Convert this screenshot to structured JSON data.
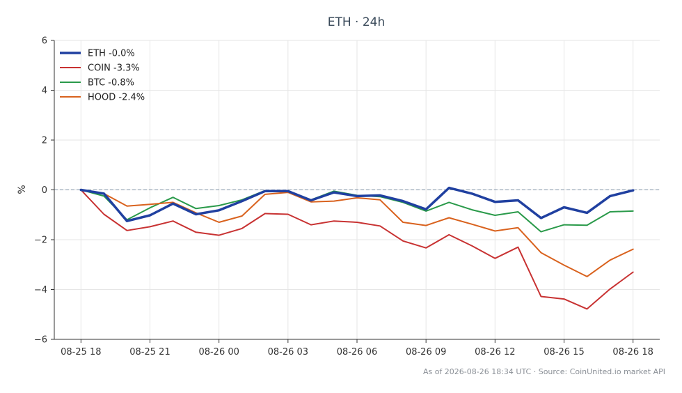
{
  "footer": "As of 2026-08-26 18:34 UTC · Source: CoinUnited.io market API",
  "chart_data": {
    "type": "line",
    "title": "ETH · 24h",
    "xlabel": "",
    "ylabel": "%",
    "ylim": [
      -6,
      6
    ],
    "yticks": [
      -6,
      -4,
      -2,
      0,
      2,
      4,
      6
    ],
    "ytick_labels": [
      "−6",
      "−4",
      "−2",
      "0",
      "2",
      "4",
      "6"
    ],
    "xticks": [
      0,
      3,
      6,
      9,
      12,
      15,
      18,
      21,
      24
    ],
    "xtick_labels": [
      "08-25 18",
      "08-25 21",
      "08-26 00",
      "08-26 03",
      "08-26 06",
      "08-26 09",
      "08-26 12",
      "08-26 15",
      "08-26 18"
    ],
    "xlim": [
      -1.16,
      25.16
    ],
    "x": [
      0,
      1,
      2,
      3,
      4,
      5,
      6,
      7,
      8,
      9,
      10,
      11,
      12,
      13,
      14,
      15,
      16,
      17,
      18,
      19,
      20,
      21,
      22,
      23,
      24
    ],
    "grid": true,
    "legend_position": "top-left",
    "reference_line": {
      "y": 0,
      "style": "dashed",
      "color": "#7a8ea3"
    },
    "series": [
      {
        "name": "ETH -0.0%",
        "color": "#2040a0",
        "width": 3.5,
        "values": [
          0.0,
          -0.15,
          -1.25,
          -1.02,
          -0.55,
          -0.98,
          -0.82,
          -0.45,
          -0.05,
          -0.05,
          -0.42,
          -0.1,
          -0.25,
          -0.22,
          -0.45,
          -0.78,
          0.08,
          -0.15,
          -0.48,
          -0.42,
          -1.13,
          -0.7,
          -0.92,
          -0.25,
          -0.02
        ]
      },
      {
        "name": "COIN -3.3%",
        "color": "#c83232",
        "width": 2,
        "values": [
          0.0,
          -0.98,
          -1.63,
          -1.48,
          -1.25,
          -1.7,
          -1.82,
          -1.55,
          -0.95,
          -0.98,
          -1.4,
          -1.25,
          -1.3,
          -1.45,
          -2.05,
          -2.33,
          -1.8,
          -2.25,
          -2.75,
          -2.3,
          -4.28,
          -4.38,
          -4.78,
          -3.98,
          -3.3
        ]
      },
      {
        "name": "BTC -0.8%",
        "color": "#2a9a4a",
        "width": 2,
        "values": [
          0.0,
          -0.25,
          -1.2,
          -0.72,
          -0.3,
          -0.75,
          -0.63,
          -0.4,
          -0.03,
          -0.05,
          -0.4,
          -0.05,
          -0.22,
          -0.27,
          -0.5,
          -0.85,
          -0.5,
          -0.8,
          -1.02,
          -0.88,
          -1.68,
          -1.4,
          -1.42,
          -0.88,
          -0.85
        ]
      },
      {
        "name": "HOOD -2.4%",
        "color": "#d9621e",
        "width": 2,
        "values": [
          0.0,
          -0.15,
          -0.65,
          -0.58,
          -0.5,
          -0.92,
          -1.3,
          -1.05,
          -0.18,
          -0.1,
          -0.48,
          -0.45,
          -0.32,
          -0.4,
          -1.3,
          -1.43,
          -1.12,
          -1.38,
          -1.65,
          -1.52,
          -2.52,
          -3.02,
          -3.48,
          -2.82,
          -2.38
        ]
      }
    ]
  }
}
